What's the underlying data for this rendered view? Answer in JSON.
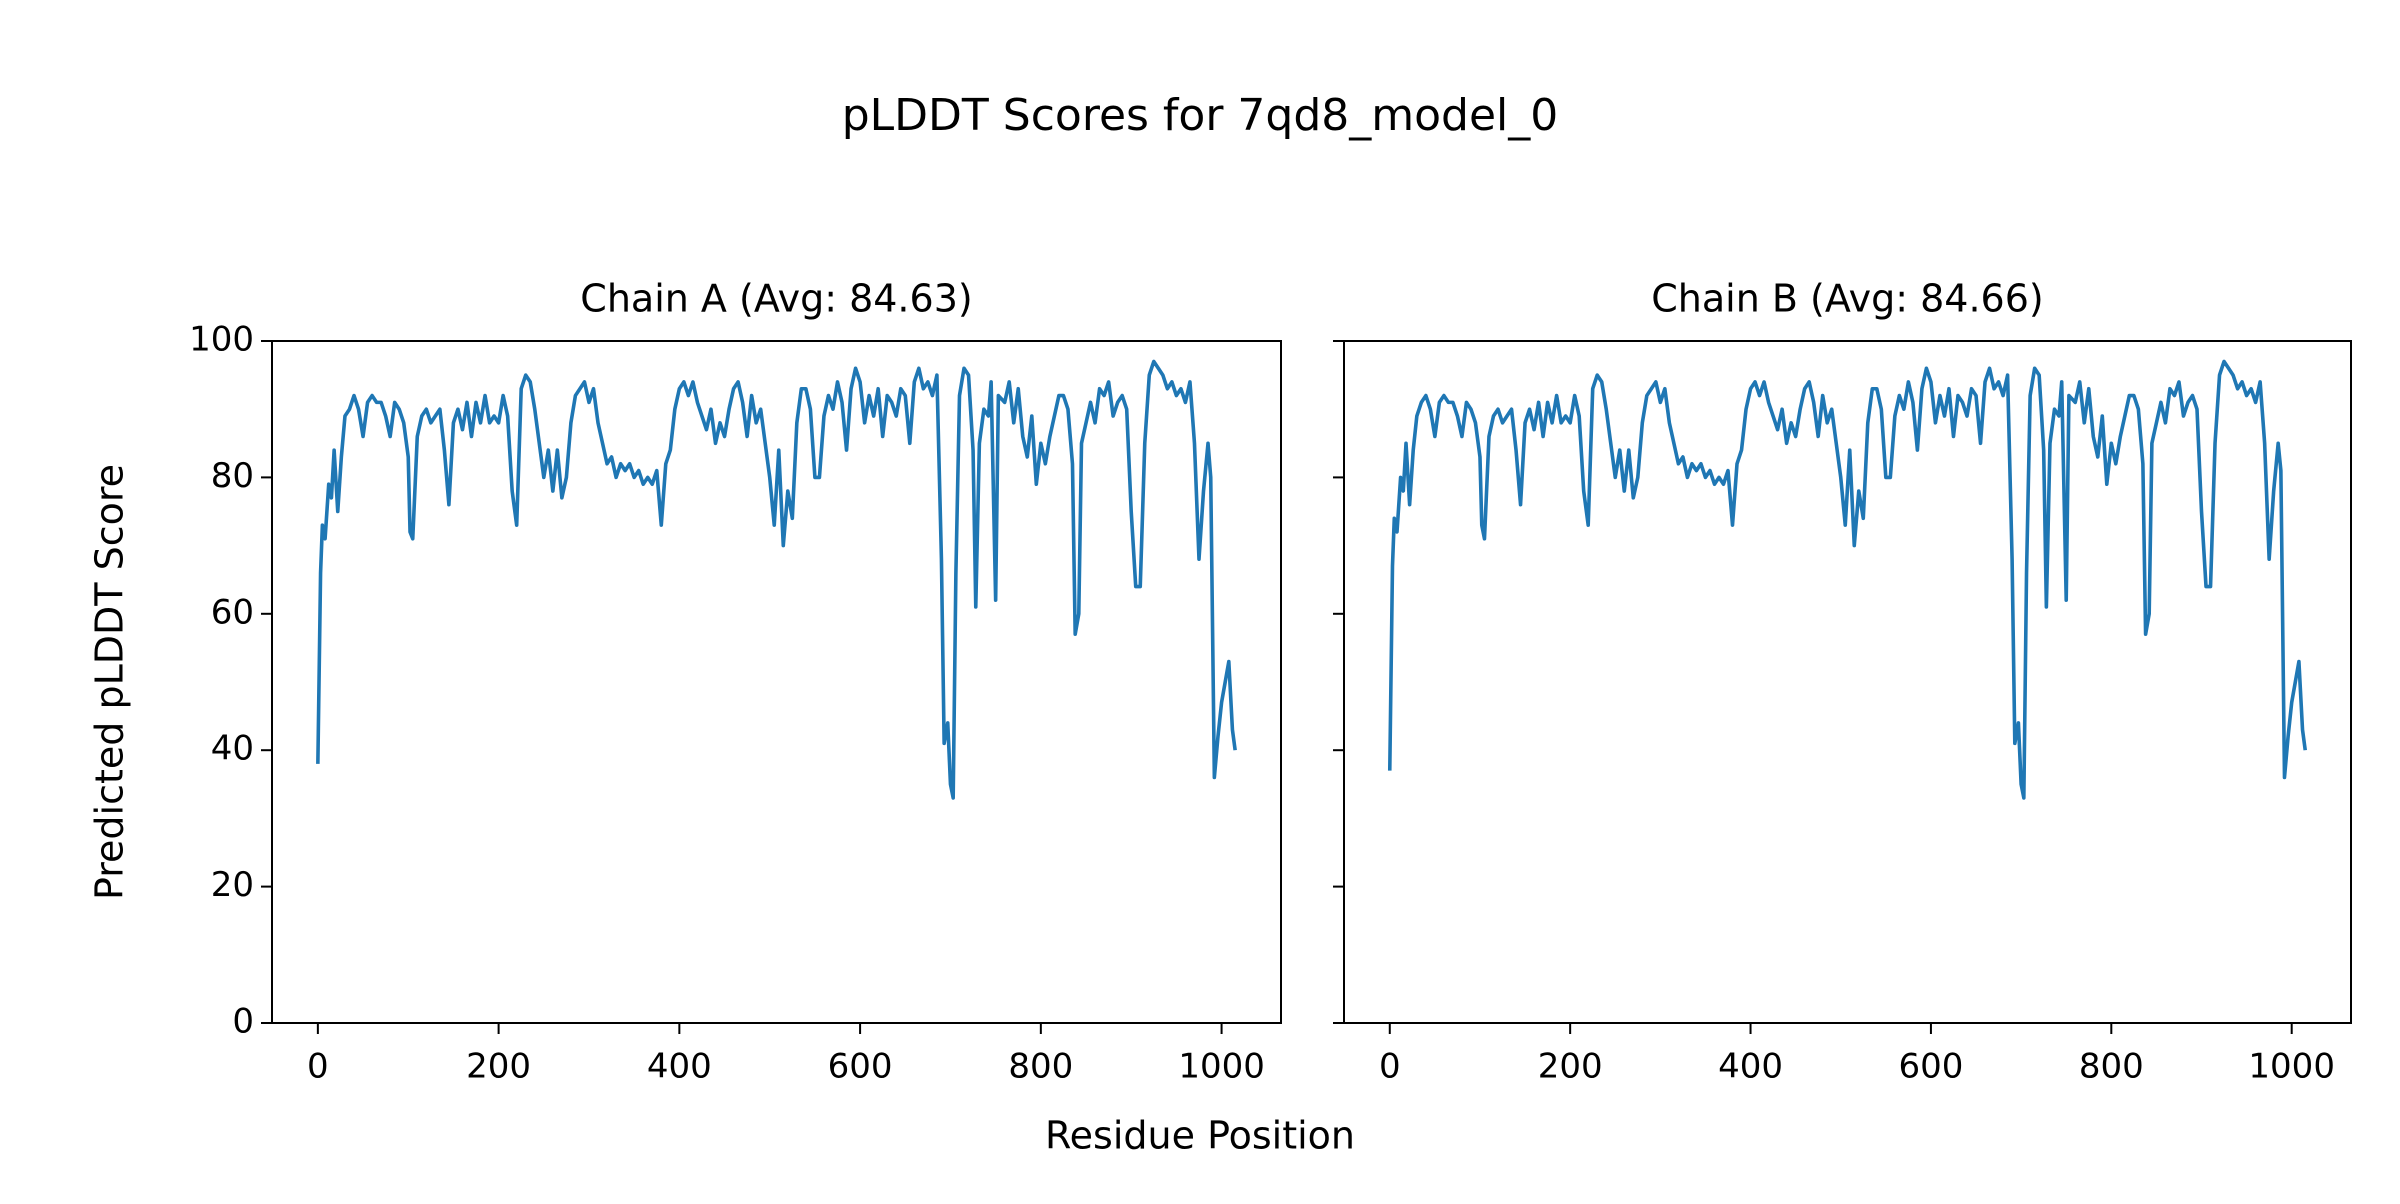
{
  "title": "pLDDT Scores for 7qd8_model_0",
  "xlabel": "Residue Position",
  "chart_data": [
    {
      "type": "line",
      "title": "Chain A (Avg: 84.63)",
      "ylabel": "Predicted pLDDT Score",
      "xlim": [
        -50.75,
        1065.75
      ],
      "ylim": [
        0,
        100
      ],
      "xticks": [
        0,
        200,
        400,
        600,
        800,
        1000
      ],
      "yticks": [
        0,
        20,
        40,
        60,
        80,
        100
      ],
      "ytick_labels": true,
      "series": [
        {
          "name": "Chain A",
          "color": "#1f77b4",
          "x": [
            0,
            3,
            5,
            8,
            12,
            15,
            18,
            22,
            26,
            30,
            35,
            40,
            45,
            50,
            55,
            60,
            65,
            70,
            75,
            80,
            85,
            90,
            95,
            100,
            102,
            105,
            110,
            115,
            120,
            125,
            130,
            135,
            140,
            145,
            150,
            155,
            160,
            165,
            170,
            175,
            180,
            185,
            190,
            195,
            200,
            205,
            210,
            215,
            220,
            225,
            230,
            235,
            240,
            245,
            250,
            255,
            260,
            265,
            270,
            275,
            280,
            285,
            290,
            295,
            300,
            305,
            310,
            315,
            320,
            325,
            330,
            335,
            340,
            345,
            350,
            355,
            360,
            365,
            370,
            375,
            380,
            385,
            390,
            395,
            400,
            405,
            410,
            415,
            420,
            425,
            430,
            435,
            440,
            445,
            450,
            455,
            460,
            465,
            470,
            475,
            480,
            485,
            490,
            495,
            500,
            505,
            510,
            515,
            520,
            525,
            530,
            535,
            540,
            545,
            550,
            555,
            560,
            565,
            570,
            575,
            580,
            585,
            590,
            595,
            600,
            605,
            610,
            615,
            620,
            625,
            630,
            635,
            640,
            645,
            650,
            655,
            660,
            665,
            670,
            675,
            680,
            685,
            690,
            693,
            697,
            700,
            703,
            706,
            710,
            715,
            720,
            725,
            728,
            732,
            737,
            742,
            745,
            750,
            753,
            760,
            765,
            770,
            775,
            780,
            785,
            790,
            795,
            800,
            805,
            810,
            815,
            820,
            825,
            830,
            835,
            838,
            842,
            845,
            850,
            855,
            860,
            865,
            870,
            875,
            880,
            885,
            890,
            895,
            900,
            905,
            910,
            915,
            920,
            925,
            930,
            935,
            940,
            945,
            950,
            955,
            960,
            965,
            970,
            975,
            980,
            985,
            988,
            992,
            996,
            1000,
            1004,
            1008,
            1012,
            1015
          ],
          "values": [
            38,
            66,
            73,
            71,
            79,
            77,
            84,
            75,
            83,
            89,
            90,
            92,
            90,
            86,
            91,
            92,
            91,
            91,
            89,
            86,
            91,
            90,
            88,
            83,
            72,
            71,
            86,
            89,
            90,
            88,
            89,
            90,
            84,
            76,
            88,
            90,
            87,
            91,
            86,
            91,
            88,
            92,
            88,
            89,
            88,
            92,
            89,
            78,
            73,
            93,
            95,
            94,
            90,
            85,
            80,
            84,
            78,
            84,
            77,
            80,
            88,
            92,
            93,
            94,
            91,
            93,
            88,
            85,
            82,
            83,
            80,
            82,
            81,
            82,
            80,
            81,
            79,
            80,
            79,
            81,
            73,
            82,
            84,
            90,
            93,
            94,
            92,
            94,
            91,
            89,
            87,
            90,
            85,
            88,
            86,
            90,
            93,
            94,
            91,
            86,
            92,
            88,
            90,
            85,
            80,
            73,
            84,
            70,
            78,
            74,
            88,
            93,
            93,
            90,
            80,
            80,
            89,
            92,
            90,
            94,
            91,
            84,
            93,
            96,
            94,
            88,
            92,
            89,
            93,
            86,
            92,
            91,
            89,
            93,
            92,
            85,
            94,
            96,
            93,
            94,
            92,
            95,
            68,
            41,
            44,
            35,
            33,
            66,
            92,
            96,
            95,
            84,
            61,
            85,
            90,
            89,
            94,
            62,
            92,
            91,
            94,
            88,
            93,
            86,
            83,
            89,
            79,
            85,
            82,
            86,
            89,
            92,
            92,
            90,
            82,
            57,
            60,
            85,
            88,
            91,
            88,
            93,
            92,
            94,
            89,
            91,
            92,
            90,
            75,
            64,
            64,
            85,
            95,
            97,
            96,
            95,
            93,
            94,
            92,
            93,
            91,
            94,
            85,
            68,
            78,
            85,
            80,
            36,
            42,
            47,
            50,
            53,
            43,
            40
          ]
        }
      ]
    },
    {
      "type": "line",
      "title": "Chain B (Avg: 84.66)",
      "xlim": [
        -50.75,
        1065.75
      ],
      "ylim": [
        0,
        100
      ],
      "xticks": [
        0,
        200,
        400,
        600,
        800,
        1000
      ],
      "yticks": [
        0,
        20,
        40,
        60,
        80,
        100
      ],
      "ytick_labels": false,
      "series": [
        {
          "name": "Chain B",
          "color": "#1f77b4",
          "x": [
            0,
            3,
            5,
            8,
            12,
            15,
            18,
            22,
            26,
            30,
            35,
            40,
            45,
            50,
            55,
            60,
            65,
            70,
            75,
            80,
            85,
            90,
            95,
            100,
            102,
            105,
            110,
            115,
            120,
            125,
            130,
            135,
            140,
            145,
            150,
            155,
            160,
            165,
            170,
            175,
            180,
            185,
            190,
            195,
            200,
            205,
            210,
            215,
            220,
            225,
            230,
            235,
            240,
            245,
            250,
            255,
            260,
            265,
            270,
            275,
            280,
            285,
            290,
            295,
            300,
            305,
            310,
            315,
            320,
            325,
            330,
            335,
            340,
            345,
            350,
            355,
            360,
            365,
            370,
            375,
            380,
            385,
            390,
            395,
            400,
            405,
            410,
            415,
            420,
            425,
            430,
            435,
            440,
            445,
            450,
            455,
            460,
            465,
            470,
            475,
            480,
            485,
            490,
            495,
            500,
            505,
            510,
            515,
            520,
            525,
            530,
            535,
            540,
            545,
            550,
            555,
            560,
            565,
            570,
            575,
            580,
            585,
            590,
            595,
            600,
            605,
            610,
            615,
            620,
            625,
            630,
            635,
            640,
            645,
            650,
            655,
            660,
            665,
            670,
            675,
            680,
            685,
            690,
            693,
            697,
            700,
            703,
            706,
            710,
            715,
            720,
            725,
            728,
            732,
            737,
            742,
            745,
            750,
            753,
            760,
            765,
            770,
            775,
            780,
            785,
            790,
            795,
            800,
            805,
            810,
            815,
            820,
            825,
            830,
            835,
            838,
            842,
            845,
            850,
            855,
            860,
            865,
            870,
            875,
            880,
            885,
            890,
            895,
            900,
            905,
            910,
            915,
            920,
            925,
            930,
            935,
            940,
            945,
            950,
            955,
            960,
            965,
            970,
            975,
            980,
            985,
            988,
            992,
            996,
            1000,
            1004,
            1008,
            1012,
            1015
          ],
          "values": [
            37,
            67,
            74,
            72,
            80,
            78,
            85,
            76,
            84,
            89,
            91,
            92,
            90,
            86,
            91,
            92,
            91,
            91,
            89,
            86,
            91,
            90,
            88,
            83,
            73,
            71,
            86,
            89,
            90,
            88,
            89,
            90,
            84,
            76,
            88,
            90,
            87,
            91,
            86,
            91,
            88,
            92,
            88,
            89,
            88,
            92,
            89,
            78,
            73,
            93,
            95,
            94,
            90,
            85,
            80,
            84,
            78,
            84,
            77,
            80,
            88,
            92,
            93,
            94,
            91,
            93,
            88,
            85,
            82,
            83,
            80,
            82,
            81,
            82,
            80,
            81,
            79,
            80,
            79,
            81,
            73,
            82,
            84,
            90,
            93,
            94,
            92,
            94,
            91,
            89,
            87,
            90,
            85,
            88,
            86,
            90,
            93,
            94,
            91,
            86,
            92,
            88,
            90,
            85,
            80,
            73,
            84,
            70,
            78,
            74,
            88,
            93,
            93,
            90,
            80,
            80,
            89,
            92,
            90,
            94,
            91,
            84,
            93,
            96,
            94,
            88,
            92,
            89,
            93,
            86,
            92,
            91,
            89,
            93,
            92,
            85,
            94,
            96,
            93,
            94,
            92,
            95,
            68,
            41,
            44,
            35,
            33,
            66,
            92,
            96,
            95,
            84,
            61,
            85,
            90,
            89,
            94,
            62,
            92,
            91,
            94,
            88,
            93,
            86,
            83,
            89,
            79,
            85,
            82,
            86,
            89,
            92,
            92,
            90,
            82,
            57,
            60,
            85,
            88,
            91,
            88,
            93,
            92,
            94,
            89,
            91,
            92,
            90,
            75,
            64,
            64,
            85,
            95,
            97,
            96,
            95,
            93,
            94,
            92,
            93,
            91,
            94,
            85,
            68,
            78,
            85,
            81,
            36,
            42,
            47,
            50,
            53,
            43,
            40
          ]
        }
      ]
    }
  ]
}
